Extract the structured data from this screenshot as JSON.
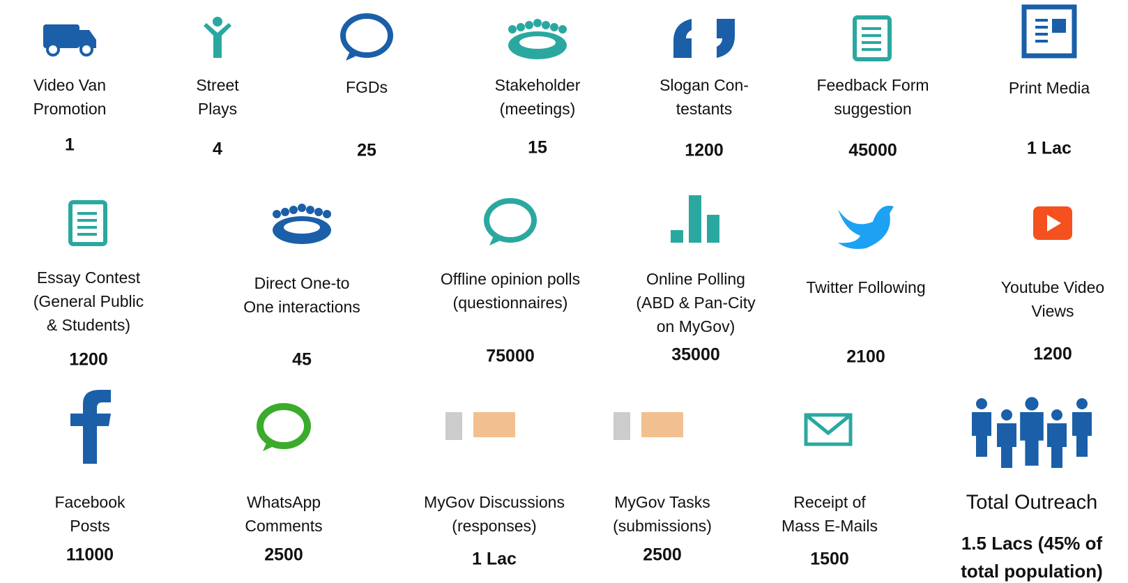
{
  "rows": [
    {
      "items": [
        {
          "label": [
            "Video Van",
            "Promotion"
          ],
          "value": 1
        },
        {
          "label": [
            "Street",
            "Plays"
          ],
          "value": 4
        },
        {
          "label": [
            "FGDs"
          ],
          "value": 25
        },
        {
          "label": [
            "Stakeholder",
            "(meetings)"
          ],
          "value": 15
        },
        {
          "label": [
            "Slogan Con-",
            "testants"
          ],
          "value": 1200
        },
        {
          "label": [
            "Feedback Form",
            "suggestion"
          ],
          "value": 45000
        },
        {
          "label": [
            "Print Media"
          ],
          "value": "1 Lac"
        }
      ]
    },
    {
      "items": [
        {
          "label": [
            "Essay Contest",
            "(General Public",
            "& Students)"
          ],
          "value": 1200
        },
        {
          "label": [
            "Direct One-to",
            "One interactions"
          ],
          "value": 45
        },
        {
          "label": [
            "Offline opinion polls",
            "(questionnaires)"
          ],
          "value": 75000
        },
        {
          "label": [
            "Online Polling",
            "(ABD & Pan-City",
            "on MyGov)"
          ],
          "value": 35000
        },
        {
          "label": [
            "Twitter Following"
          ],
          "value": 2100
        },
        {
          "label": [
            "Youtube Video",
            "Views"
          ],
          "value": 1200
        }
      ]
    },
    {
      "items": [
        {
          "label": [
            "Facebook",
            "Posts"
          ],
          "value": 11000
        },
        {
          "label": [
            "WhatsApp",
            "Comments"
          ],
          "value": 2500
        },
        {
          "label": [
            "MyGov Discussions",
            "(responses)"
          ],
          "value": "1 Lac"
        },
        {
          "label": [
            "MyGov Tasks",
            "(submissions)"
          ],
          "value": 2500
        },
        {
          "label": [
            "Receipt of",
            "Mass E-Mails"
          ],
          "value": 1500
        }
      ]
    }
  ],
  "total": {
    "label": "Total Outreach",
    "value": [
      "1.5 Lacs (45% of",
      "total population)"
    ]
  }
}
